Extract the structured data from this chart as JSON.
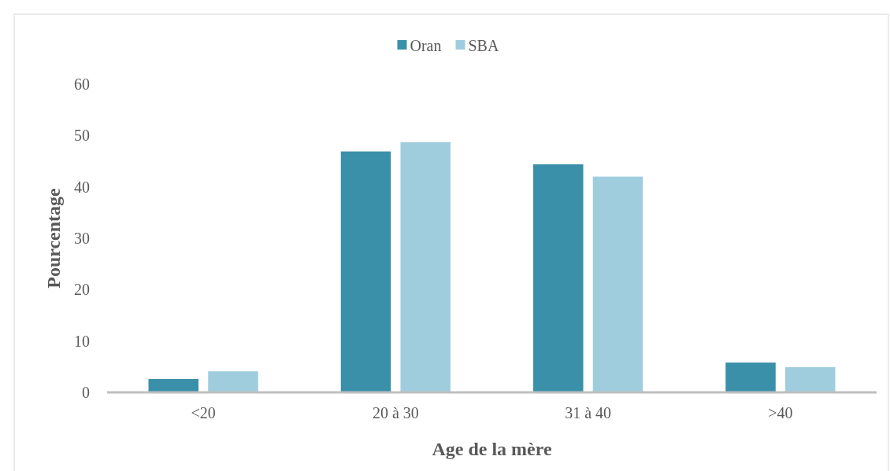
{
  "chart_data": {
    "type": "bar",
    "xlabel": "Age de la mère",
    "ylabel": "Pourcentage",
    "categories": [
      "<20",
      "20 à 30",
      "31 à 40",
      ">40"
    ],
    "series": [
      {
        "name": "Oran",
        "color": "#3a90a8",
        "values": [
          2.6,
          46.9,
          44.4,
          5.8
        ]
      },
      {
        "name": "SBA",
        "color": "#9fcddd",
        "values": [
          4.1,
          48.7,
          42.0,
          4.9
        ]
      }
    ],
    "ylim": [
      0,
      60
    ],
    "yticks": [
      0,
      10,
      20,
      30,
      40,
      50,
      60
    ],
    "grid": false,
    "legend": "top"
  }
}
